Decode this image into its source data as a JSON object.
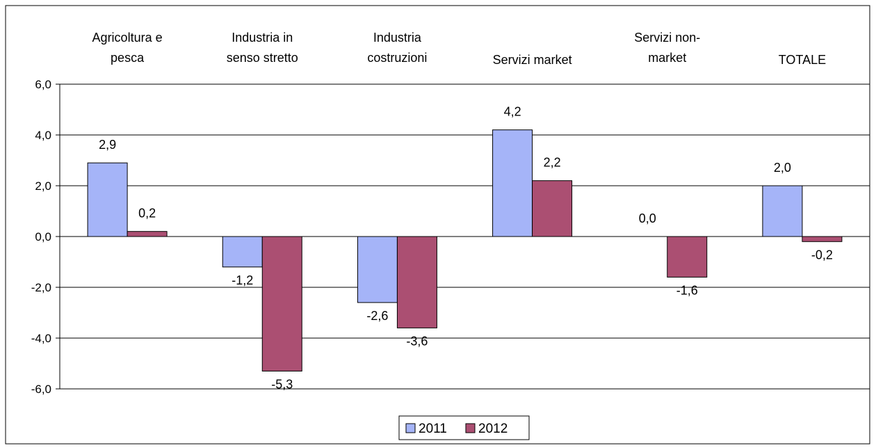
{
  "chart_data": {
    "type": "bar",
    "title": "",
    "xlabel": "",
    "ylabel": "",
    "categories": [
      [
        "Agricoltura e",
        "pesca"
      ],
      [
        "Industria in",
        "senso stretto"
      ],
      [
        "Industria",
        "costruzioni"
      ],
      [
        "Servizi market"
      ],
      [
        "Servizi non-",
        "market"
      ],
      [
        "TOTALE"
      ]
    ],
    "series": [
      {
        "name": "2011",
        "values": [
          2.9,
          -1.2,
          -2.6,
          4.2,
          0.0,
          2.0
        ],
        "labels": [
          "2,9",
          "-1,2",
          "-2,6",
          "4,2",
          "0,0",
          "2,0"
        ],
        "color": "#a5b4f8"
      },
      {
        "name": "2012",
        "values": [
          0.2,
          -5.3,
          -3.6,
          2.2,
          -1.6,
          -0.2
        ],
        "labels": [
          "0,2",
          "-5,3",
          "-3,6",
          "2,2",
          "-1,6",
          "-0,2"
        ],
        "color": "#ab4f72"
      }
    ],
    "ylim": [
      -6,
      6
    ],
    "yticks": [
      6,
      4,
      2,
      0,
      -2,
      -4,
      -6
    ],
    "ytick_labels": [
      "6,0",
      "4,0",
      "2,0",
      "0,0",
      "-2,0",
      "-4,0",
      "-6,0"
    ],
    "grid": true,
    "legend_position": "bottom"
  }
}
